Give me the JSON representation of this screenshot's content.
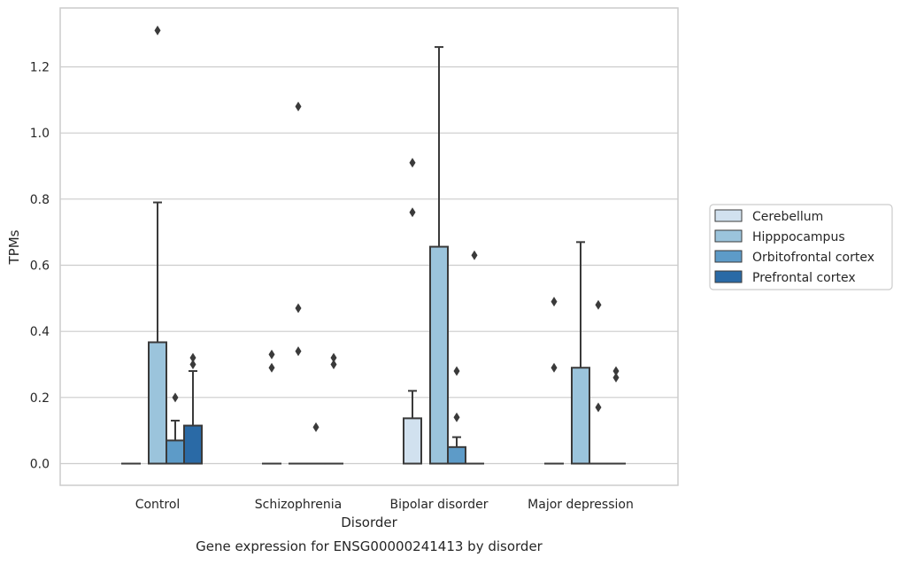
{
  "chart_data": {
    "type": "box",
    "caption": "Gene expression for ENSG00000241413 by disorder",
    "xlabel": "Disorder",
    "ylabel": "TPMs",
    "ylim": [
      -0.065,
      1.38
    ],
    "yticks": [
      0.0,
      0.2,
      0.4,
      0.6,
      0.8,
      1.0,
      1.2
    ],
    "ytick_labels": [
      "0.0",
      "0.2",
      "0.4",
      "0.6",
      "0.8",
      "1.0",
      "1.2"
    ],
    "grid": "horizontal",
    "legend_position": "right",
    "categories": [
      "Control",
      "Schizophrenia",
      "Bipolar disorder",
      "Major depression"
    ],
    "series": [
      {
        "name": "Cerebellum",
        "color": "#d1e1ef",
        "boxes": [
          {
            "category": "Control",
            "whislo": 0,
            "q1": 0,
            "med": 0,
            "q3": 0,
            "whishi": 0,
            "outliers": []
          },
          {
            "category": "Schizophrenia",
            "whislo": 0,
            "q1": 0,
            "med": 0,
            "q3": 0,
            "whishi": 0,
            "outliers": [
              0.29,
              0.33
            ]
          },
          {
            "category": "Bipolar disorder",
            "whislo": 0,
            "q1": 0,
            "med": 0,
            "q3": 0.137,
            "whishi": 0.22,
            "outliers": [
              0.76,
              0.91
            ]
          },
          {
            "category": "Major depression",
            "whislo": 0,
            "q1": 0,
            "med": 0,
            "q3": 0,
            "whishi": 0,
            "outliers": [
              0.29,
              0.49
            ]
          }
        ]
      },
      {
        "name": "Hipppocampus",
        "color": "#9bc4dc",
        "boxes": [
          {
            "category": "Control",
            "whislo": 0,
            "q1": 0,
            "med": 0,
            "q3": 0.367,
            "whishi": 0.79,
            "outliers": [
              1.31
            ]
          },
          {
            "category": "Schizophrenia",
            "whislo": 0,
            "q1": 0,
            "med": 0,
            "q3": 0,
            "whishi": 0,
            "outliers": [
              0.34,
              0.47,
              1.08
            ]
          },
          {
            "category": "Bipolar disorder",
            "whislo": 0,
            "q1": 0,
            "med": 0,
            "q3": 0.656,
            "whishi": 1.26,
            "outliers": []
          },
          {
            "category": "Major depression",
            "whislo": 0,
            "q1": 0,
            "med": 0,
            "q3": 0.29,
            "whishi": 0.67,
            "outliers": []
          }
        ]
      },
      {
        "name": "Orbitofrontal cortex",
        "color": "#5d9bc8",
        "boxes": [
          {
            "category": "Control",
            "whislo": 0,
            "q1": 0,
            "med": 0,
            "q3": 0.07,
            "whishi": 0.13,
            "outliers": [
              0.2
            ]
          },
          {
            "category": "Schizophrenia",
            "whislo": 0,
            "q1": 0,
            "med": 0,
            "q3": 0,
            "whishi": 0,
            "outliers": [
              0.11
            ]
          },
          {
            "category": "Bipolar disorder",
            "whislo": 0,
            "q1": 0,
            "med": 0,
            "q3": 0.05,
            "whishi": 0.08,
            "outliers": [
              0.14,
              0.28
            ]
          },
          {
            "category": "Major depression",
            "whislo": 0,
            "q1": 0,
            "med": 0,
            "q3": 0,
            "whishi": 0,
            "outliers": [
              0.17,
              0.48
            ]
          }
        ]
      },
      {
        "name": "Prefrontal cortex",
        "color": "#2a6aa6",
        "boxes": [
          {
            "category": "Control",
            "whislo": 0,
            "q1": 0,
            "med": 0,
            "q3": 0.115,
            "whishi": 0.28,
            "outliers": [
              0.3,
              0.32
            ]
          },
          {
            "category": "Schizophrenia",
            "whislo": 0,
            "q1": 0,
            "med": 0,
            "q3": 0,
            "whishi": 0,
            "outliers": [
              0.3,
              0.32
            ]
          },
          {
            "category": "Bipolar disorder",
            "whislo": 0,
            "q1": 0,
            "med": 0,
            "q3": 0,
            "whishi": 0,
            "outliers": [
              0.63
            ]
          },
          {
            "category": "Major depression",
            "whislo": 0,
            "q1": 0,
            "med": 0,
            "q3": 0,
            "whishi": 0,
            "outliers": [
              0.26,
              0.28
            ]
          }
        ]
      }
    ]
  }
}
